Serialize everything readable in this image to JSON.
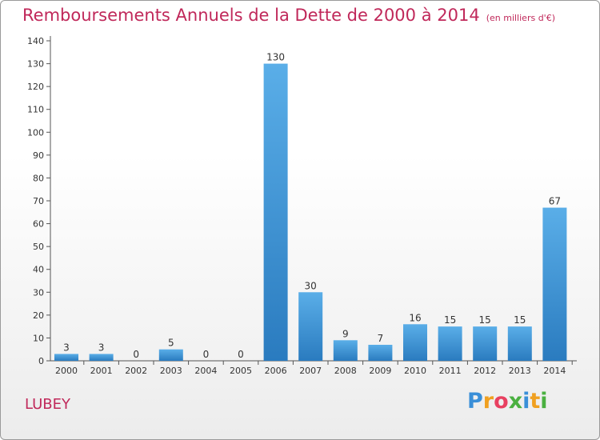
{
  "chart_data": {
    "type": "bar",
    "title": "Remboursements Annuels de la Dette de 2000 à 2014",
    "unit_note": "(en milliers d'€)",
    "categories": [
      "2000",
      "2001",
      "2002",
      "2003",
      "2004",
      "2005",
      "2006",
      "2007",
      "2008",
      "2009",
      "2010",
      "2011",
      "2012",
      "2013",
      "2014"
    ],
    "values": [
      3,
      3,
      0,
      5,
      0,
      0,
      130,
      30,
      9,
      7,
      16,
      15,
      15,
      15,
      67
    ],
    "ylim": [
      0,
      140
    ],
    "yticks": [
      0,
      10,
      20,
      30,
      40,
      50,
      60,
      70,
      80,
      90,
      100,
      110,
      120,
      130,
      140
    ],
    "grid": false,
    "xlabel": "",
    "ylabel": "",
    "bar_color_top": "#5aaee8",
    "bar_color_bottom": "#2a7bbf"
  },
  "commune": "LUBEY",
  "logo": {
    "letters": [
      "P",
      "r",
      "o",
      "x",
      "i",
      "t",
      "i"
    ],
    "colors": [
      "#3a8fd8",
      "#f0a020",
      "#e84060",
      "#4ab040",
      "#3a8fd8",
      "#f0a020",
      "#4ab040"
    ]
  },
  "colors": {
    "title": "#c0285a",
    "axis": "#555555"
  }
}
